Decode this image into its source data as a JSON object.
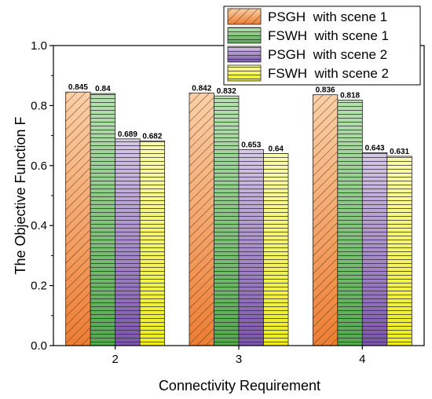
{
  "chart_data": {
    "type": "bar",
    "xlabel": "Connectivity Requirement",
    "ylabel": "The Objective Function F",
    "categories": [
      "2",
      "3",
      "4"
    ],
    "ylim": [
      0,
      1.0
    ],
    "yticks": [
      "0.0",
      "0.2",
      "0.4",
      "0.6",
      "0.8",
      "1.0"
    ],
    "legend_position": "top-right",
    "series": [
      {
        "name": "PSGH  with scene 1",
        "values": [
          0.845,
          0.842,
          0.836
        ],
        "labels": [
          "0.845",
          "0.842",
          "0.836"
        ],
        "color_top": "#fbd0a8",
        "color_bottom": "#ee7d33",
        "pattern": "diagonal"
      },
      {
        "name": "FSWH  with scene 1",
        "values": [
          0.84,
          0.832,
          0.818
        ],
        "labels": [
          "0.84",
          "0.832",
          "0.818"
        ],
        "color_top": "#b7e2b0",
        "color_bottom": "#53a94e",
        "pattern": "horizontal"
      },
      {
        "name": "PSGH  with scene 2",
        "values": [
          0.689,
          0.653,
          0.643
        ],
        "labels": [
          "0.689",
          "0.653",
          "0.643"
        ],
        "color_top": "#d7c8e8",
        "color_bottom": "#7b55ad",
        "pattern": "horizontal"
      },
      {
        "name": "FSWH  with scene 2",
        "values": [
          0.682,
          0.64,
          0.631
        ],
        "labels": [
          "0.682",
          "0.64",
          "0.631"
        ],
        "color_top": "#fbfbb0",
        "color_bottom": "#eded1c",
        "pattern": "horizontal"
      }
    ]
  }
}
